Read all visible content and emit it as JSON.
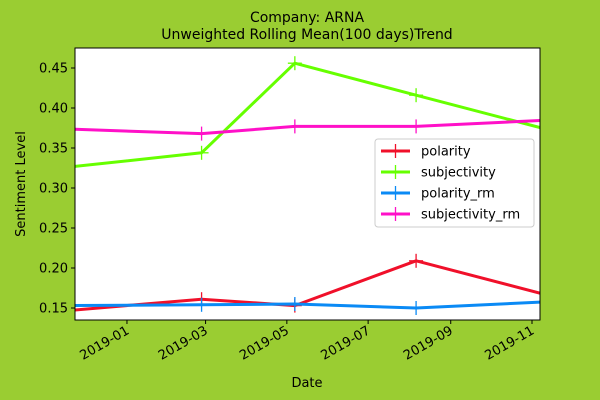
{
  "colors": {
    "figure_bg": "#9acd32",
    "axes_bg": "#ffffff",
    "polarity": "#f0102a",
    "subjectivity": "#66ff00",
    "polarity_rm": "#0a8af5",
    "subjectivity_rm": "#ff10c8"
  },
  "chart_data": {
    "type": "line",
    "title": "Company: ARNA\nUnweighted Rolling Mean(100 days)Trend",
    "title_lines": [
      "Company: ARNA",
      "Unweighted Rolling Mean(100 days)Trend"
    ],
    "xlabel": "Date",
    "ylabel": "Sentiment Level",
    "xlim": [
      "2018-11-23",
      "2019-11-07"
    ],
    "ylim": [
      0.135,
      0.475
    ],
    "xticks": [
      "2019-01-01",
      "2019-03-01",
      "2019-05-01",
      "2019-07-01",
      "2019-09-01",
      "2019-11-01"
    ],
    "xtick_labels": [
      "2019-01",
      "2019-03",
      "2019-05",
      "2019-07",
      "2019-09",
      "2019-11"
    ],
    "yticks": [
      0.15,
      0.2,
      0.25,
      0.3,
      0.35,
      0.4,
      0.45
    ],
    "ytick_labels": [
      "0.15",
      "0.20",
      "0.25",
      "0.30",
      "0.35",
      "0.40",
      "0.45"
    ],
    "grid": false,
    "legend": "center-right",
    "x": [
      "2018-11-12",
      "2019-02-26",
      "2019-05-07",
      "2019-08-06",
      "2019-11-15"
    ],
    "series": [
      {
        "name": "polarity",
        "color_key": "polarity",
        "values": [
          0.146,
          0.161,
          0.153,
          0.209,
          0.165
        ]
      },
      {
        "name": "subjectivity",
        "color_key": "subjectivity",
        "values": [
          0.325,
          0.344,
          0.456,
          0.416,
          0.372
        ]
      },
      {
        "name": "polarity_rm",
        "color_key": "polarity_rm",
        "values": [
          0.153,
          0.154,
          0.155,
          0.15,
          0.158
        ]
      },
      {
        "name": "subjectivity_rm",
        "color_key": "subjectivity_rm",
        "values": [
          0.374,
          0.368,
          0.377,
          0.377,
          0.385
        ]
      }
    ]
  }
}
